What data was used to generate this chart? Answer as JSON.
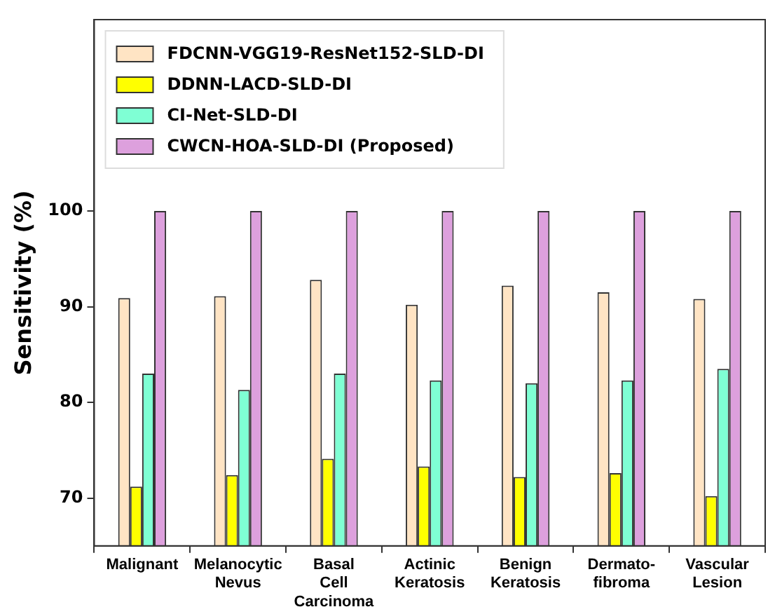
{
  "chart_data": {
    "type": "bar",
    "ylabel": "Sensitivity (%)",
    "categories": [
      "Malignant",
      "Melanocytic Nevus",
      "Basal Cell Carcinoma",
      "Actinic Keratosis",
      "Benign Keratosis",
      "Dermato-fibroma",
      "Vascular Lesion"
    ],
    "series": [
      {
        "name": "FDCNN-VGG19-ResNet152-SLD-DI",
        "color": "#ffe4c4",
        "values": [
          90.9,
          91.1,
          92.8,
          90.2,
          92.2,
          91.5,
          90.8
        ]
      },
      {
        "name": "DDNN-LACD-SLD-DI",
        "color": "#ffff00",
        "values": [
          71.2,
          72.4,
          74.1,
          73.3,
          72.2,
          72.6,
          70.2
        ]
      },
      {
        "name": "CI-Net-SLD-DI",
        "color": "#7fffd4",
        "values": [
          83.0,
          81.3,
          83.0,
          82.3,
          82.0,
          82.3,
          83.5
        ]
      },
      {
        "name": "CWCN-HOA-SLD-DI (Proposed)",
        "color": "#dda0dd",
        "values": [
          100,
          100,
          100,
          100,
          100,
          100,
          100
        ]
      }
    ],
    "ylim": [
      65,
      120
    ],
    "yticks": [
      70,
      80,
      90,
      100
    ],
    "grid": false,
    "legend": "top left"
  }
}
